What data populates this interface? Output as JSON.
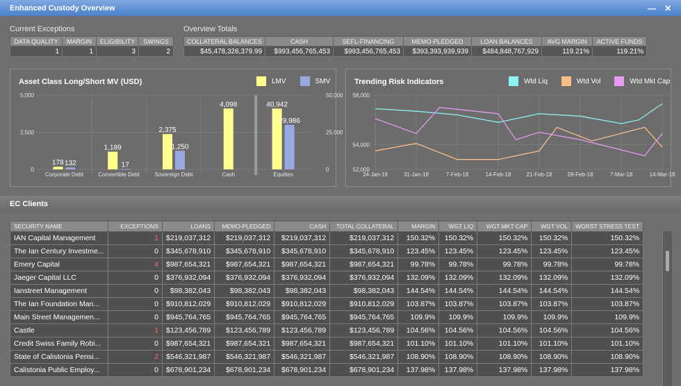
{
  "window": {
    "title": "Enhanced Custody Overview"
  },
  "exceptions": {
    "label": "Current Exceptions",
    "headers": [
      "DATA QUALITY",
      "MARGIN",
      "ELIGIBILITY",
      "SWINGS"
    ],
    "values": [
      "1",
      "1",
      "3",
      "2"
    ]
  },
  "totals": {
    "label": "Overview Totals",
    "headers": [
      "COLLATERAL BALANCES",
      "CASH",
      "SEFL-FINANCING",
      "MEMO-PLEDGED",
      "LOAN BALANCES",
      "AVG MARGIN",
      "ACTIVE FUNDS"
    ],
    "values": [
      "$45,478,326,379.99",
      "$993,456,765,453",
      "$993,456,765,453",
      "$393,393,939,939",
      "$484,848,767,929",
      "119.21%",
      "119.21%"
    ]
  },
  "colors": {
    "lmv": "#ffff8e",
    "smv": "#9aa7e0",
    "wtd_liq": "#8ef2f2",
    "wtd_vol": "#f7be8a",
    "wtd_mkt_cap": "#e59bf0"
  },
  "chart_data": [
    {
      "type": "bar",
      "title": "Asset Class Long/Short MV (USD)",
      "categories": [
        "Corporate Debt",
        "Convertible Debt",
        "Sovereign Debt",
        "Cash",
        "Equities"
      ],
      "series": [
        {
          "name": "LMV",
          "values": [
            178,
            1189,
            2375,
            4098,
            40942
          ],
          "labels": [
            "178",
            "1,189",
            "2,375",
            "4,098",
            "40,942"
          ]
        },
        {
          "name": "SMV",
          "values": [
            132,
            17,
            1250,
            null,
            29986
          ],
          "labels": [
            "132",
            "17",
            "1,250",
            "",
            "29,986"
          ]
        }
      ],
      "left_axis": {
        "ticks": [
          "5,000",
          "2,500",
          "0"
        ],
        "ylim": [
          0,
          5000
        ]
      },
      "right_axis": {
        "ticks": [
          "50,000",
          "25,000",
          "0"
        ],
        "ylim": [
          0,
          50000
        ]
      }
    },
    {
      "type": "line",
      "title": "Trending Risk Indicators",
      "x": [
        "24-Jan-18",
        "31-Jan-18",
        "7-Feb-18",
        "14-Feb-18",
        "21-Feb-18",
        "28-Feb-18",
        "7-Mar-18",
        "14-Mar-18"
      ],
      "ylim": [
        52000,
        58000
      ],
      "yticks": [
        "58,000",
        "54,000",
        "52,000"
      ],
      "series": [
        {
          "name": "Wtd Liq",
          "x": [
            "24-Jan-18",
            "31-Jan-18",
            "7-Feb-18",
            "14-Feb-18",
            "21-Feb-18",
            "28-Feb-18",
            "7-Mar-18",
            "10-Mar-18",
            "14-Mar-18"
          ],
          "values": [
            56900,
            56700,
            56400,
            55800,
            56500,
            56300,
            55700,
            56000,
            57300
          ]
        },
        {
          "name": "Wtd Vol",
          "x": [
            "24-Jan-18",
            "31-Jan-18",
            "7-Feb-18",
            "14-Feb-18",
            "21-Feb-18",
            "24-Feb-18",
            "2-Mar-18",
            "11-Mar-18",
            "14-Mar-18"
          ],
          "values": [
            53500,
            54100,
            52800,
            52800,
            53500,
            55400,
            54300,
            55400,
            53800
          ]
        },
        {
          "name": "Wtd Mkt Cap",
          "x": [
            "24-Jan-18",
            "31-Jan-18",
            "4-Feb-18",
            "14-Feb-18",
            "17-Feb-18",
            "21-Feb-18",
            "28-Feb-18",
            "11-Mar-18",
            "14-Mar-18"
          ],
          "values": [
            56100,
            54900,
            57000,
            56500,
            54400,
            55000,
            54400,
            53100,
            54900
          ]
        }
      ]
    }
  ],
  "clients": {
    "title": "EC Clients",
    "headers": [
      "SECURITY NAME",
      "EXCEPTIONS",
      "LOANS",
      "MEMO-PLEDGED",
      "CASH",
      "TOTAL COLLATERAL",
      "MARGIN",
      "WGT LIQ",
      "WGT MKT CAP",
      "WGT VOL",
      "WORST STRESS TEST"
    ],
    "rows": [
      [
        "IAN Capital Management",
        "1",
        "$219,037,312",
        "$219,037,312",
        "$219,037,312",
        "$219,037,312",
        "150.32%",
        "150.32%",
        "150.32%",
        "150.32%",
        "150.32%"
      ],
      [
        "The Ian Century Investme...",
        "0",
        "$345,678,910",
        "$345,678,910",
        "$345,678,910",
        "$345,678,910",
        "123.45%",
        "123.45%",
        "123.45%",
        "123.45%",
        "123.45%"
      ],
      [
        "Emery Capital",
        "4",
        "$987,654,321",
        "$987,654,321",
        "$987,654,321",
        "$987,654,321",
        "99.78%",
        "99.78%",
        "99.78%",
        "99.78%",
        "99.78%"
      ],
      [
        "Jaeger Capital LLC",
        "0",
        "$376,932,094",
        "$376,932,094",
        "$376,932,094",
        "$376,932,094",
        "132.09%",
        "132.09%",
        "132.09%",
        "132.09%",
        "132.09%"
      ],
      [
        "Ianstreet Management",
        "0",
        "$98,382,043",
        "$98,382,043",
        "$98,382,043",
        "$98,382,043",
        "144.54%",
        "144.54%",
        "144.54%",
        "144.54%",
        "144.54%"
      ],
      [
        "The Ian Foundation Man...",
        "0",
        "$910,812,029",
        "$910,812,029",
        "$910,812,029",
        "$910,812,029",
        "103.87%",
        "103.87%",
        "103.87%",
        "103.87%",
        "103.87%"
      ],
      [
        "Main Street Managemen...",
        "0",
        "$945,764,765",
        "$945,764,765",
        "$945,764,765",
        "$945,764,765",
        "109.9%",
        "109.9%",
        "109.9%",
        "109.9%",
        "109.9%"
      ],
      [
        "Castle",
        "1",
        "$123,456,789",
        "$123,456,789",
        "$123,456,789",
        "$123,456,789",
        "104.56%",
        "104.56%",
        "104.56%",
        "104.56%",
        "104.56%"
      ],
      [
        "Credit Swiss Family Robi...",
        "0",
        "$987,654,321",
        "$987,654,321",
        "$987,654,321",
        "$987,654,321",
        "101.10%",
        "101.10%",
        "101.10%",
        "101.10%",
        "101.10%"
      ],
      [
        "State of Calistonia Pensi...",
        "2",
        "$546,321,987",
        "$546,321,987",
        "$546,321,987",
        "$546,321,987",
        "108.90%",
        "108.90%",
        "108.90%",
        "108.90%",
        "108.90%"
      ],
      [
        "Calistonia Public Employ...",
        "0",
        "$678,901,234",
        "$678,901,234",
        "$678,901,234",
        "$678,901,234",
        "137.98%",
        "137.98%",
        "137.98%",
        "137.98%",
        "137.98%"
      ]
    ]
  }
}
